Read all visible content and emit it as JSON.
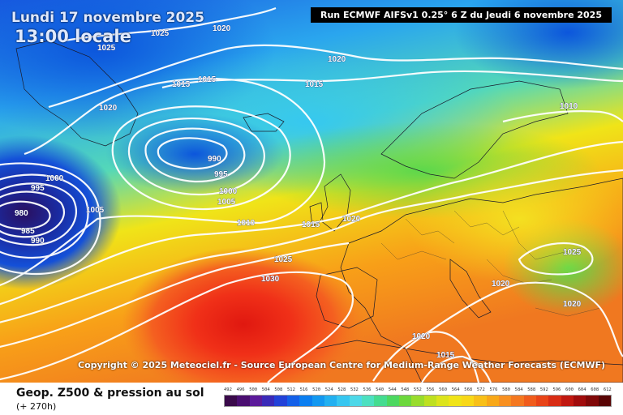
{
  "header": {
    "date": "Lundi 17 novembre 2025",
    "time": "13:00 locale",
    "run": "Run ECMWF AIFSv1 0.25° 6 Z du Jeudi 6 novembre 2025"
  },
  "copyright": "Copyright © 2025 Meteociel.fr - Source European Centre for Medium-Range Weather Forecasts (ECMWF)",
  "footer": {
    "title": "Geop. Z500 & pression au sol",
    "subtitle": "(+ 270h)"
  },
  "scale": {
    "labels": [
      "492",
      "496",
      "500",
      "504",
      "508",
      "512",
      "516",
      "520",
      "524",
      "528",
      "532",
      "536",
      "540",
      "544",
      "548",
      "552",
      "556",
      "560",
      "564",
      "568",
      "572",
      "576",
      "580",
      "584",
      "588",
      "592",
      "596",
      "600",
      "604",
      "608",
      "612"
    ],
    "colors": [
      "#3a0a4a",
      "#4a0e70",
      "#5b1a9a",
      "#3a2ab8",
      "#2242d8",
      "#1460e8",
      "#0a7ef0",
      "#1298f0",
      "#22b0f0",
      "#36c6f0",
      "#4cd8e8",
      "#4ce0c0",
      "#44dc90",
      "#4cd860",
      "#6cd83c",
      "#98dc2c",
      "#bee020",
      "#dce41c",
      "#f0e418",
      "#f8d818",
      "#f8c018",
      "#f8a818",
      "#f89020",
      "#f47820",
      "#f05c1c",
      "#e84418",
      "#d82c14",
      "#c01810",
      "#a00c0c",
      "#800808",
      "#580404"
    ]
  },
  "isobars": {
    "labels": [
      "1025",
      "1020",
      "1025",
      "1020",
      "1015",
      "1015",
      "1015",
      "1020",
      "1010",
      "990",
      "995",
      "1000",
      "1005",
      "1000",
      "995",
      "980",
      "985",
      "990",
      "1005",
      "1010",
      "1015",
      "1020",
      "1025",
      "1030",
      "1025",
      "1020",
      "1020",
      "1020",
      "1015"
    ],
    "highlight_center": "1030",
    "low_center": "980"
  }
}
